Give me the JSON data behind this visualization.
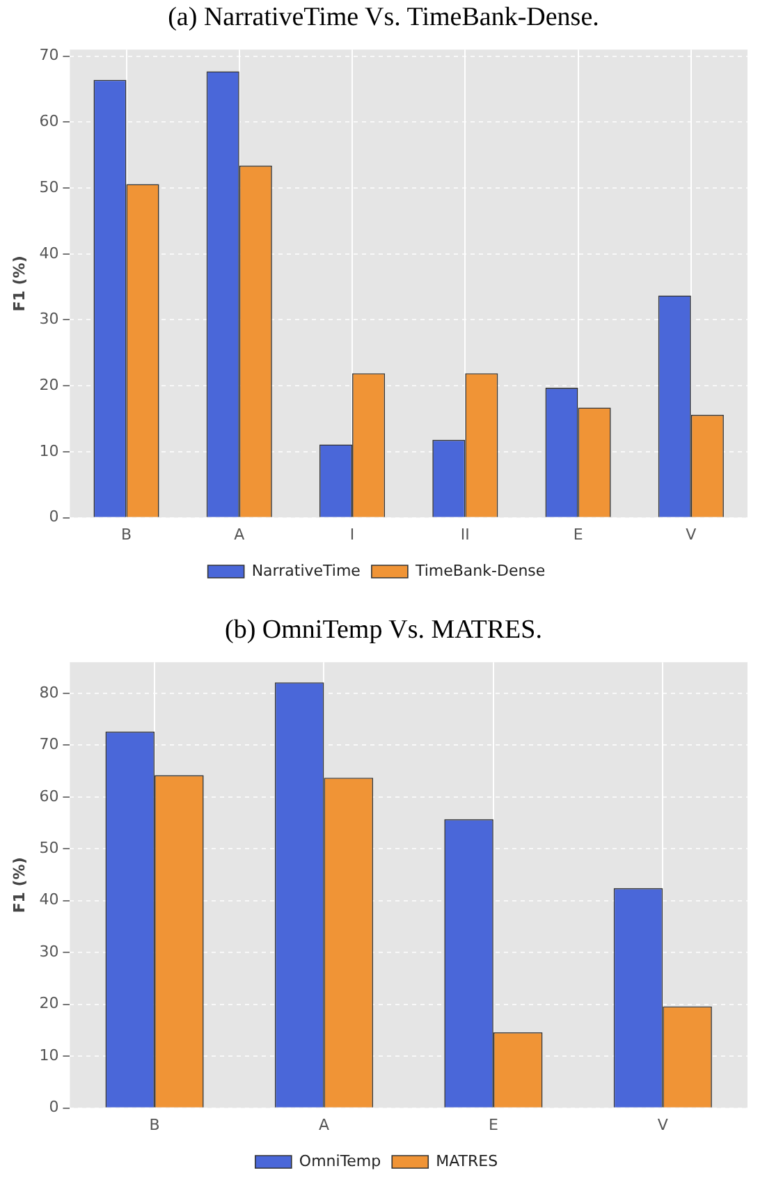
{
  "chart_data": [
    {
      "type": "bar",
      "title": "(a) NarrativeTime Vs. TimeBank-Dense.",
      "ylabel": "F1 (%)",
      "categories": [
        "B",
        "A",
        "I",
        "II",
        "E",
        "V"
      ],
      "series": [
        {
          "name": "NarrativeTime",
          "color": "#4a67d9",
          "values": [
            66.4,
            67.7,
            11.1,
            11.8,
            19.7,
            33.7
          ]
        },
        {
          "name": "TimeBank-Dense",
          "color": "#f09436",
          "values": [
            50.6,
            53.4,
            21.9,
            21.9,
            16.7,
            15.6
          ]
        }
      ],
      "ylim": [
        0,
        71
      ],
      "yticks": [
        0,
        10,
        20,
        30,
        40,
        50,
        60,
        70
      ],
      "grid": true,
      "legend": "bottom"
    },
    {
      "type": "bar",
      "title": "(b) OmniTemp Vs. MATRES.",
      "ylabel": "F1 (%)",
      "categories": [
        "B",
        "A",
        "E",
        "V"
      ],
      "series": [
        {
          "name": "OmniTemp",
          "color": "#4a67d9",
          "values": [
            72.6,
            82.1,
            55.7,
            42.4
          ]
        },
        {
          "name": "MATRES",
          "color": "#f09436",
          "values": [
            64.2,
            63.7,
            14.6,
            19.6
          ]
        }
      ],
      "ylim": [
        0,
        86
      ],
      "yticks": [
        0,
        10,
        20,
        30,
        40,
        50,
        60,
        70,
        80
      ],
      "grid": true,
      "legend": "bottom"
    }
  ]
}
